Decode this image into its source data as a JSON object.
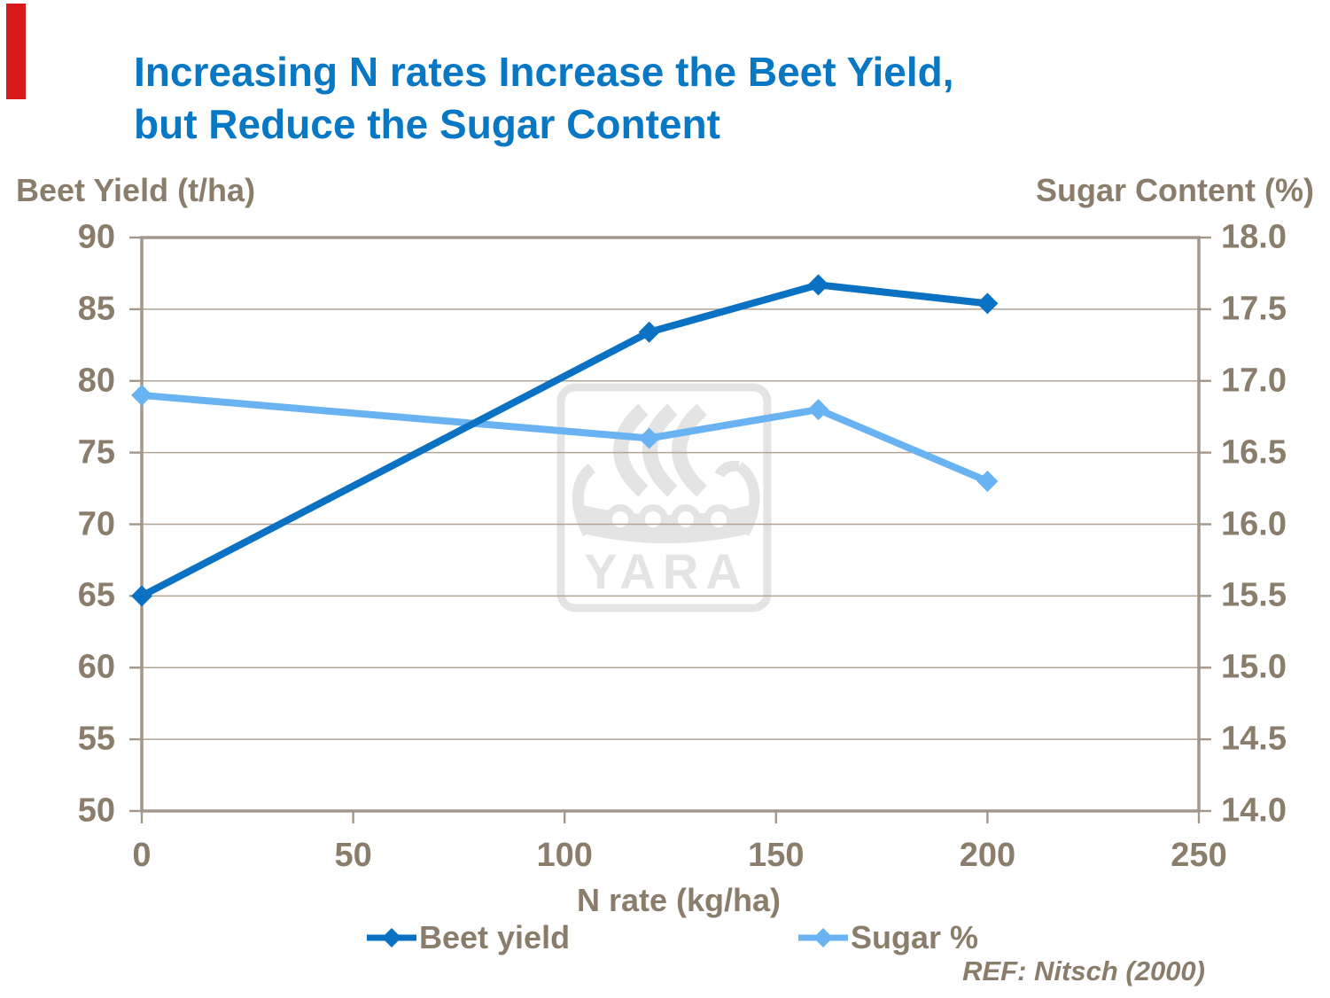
{
  "slide": {
    "title_line1": "Increasing N rates Increase the Beet Yield,",
    "title_line2": "but Reduce the Sugar Content",
    "title_color": "#0877C4",
    "text_color": "#8B7D6B",
    "accent_color": "#D7191C",
    "frame_color": "#A3968A",
    "gridline_color": "#B0A494",
    "watermark_color": "#E4E4E4"
  },
  "chart_data": {
    "type": "line",
    "title": "Increasing N rates Increase the Beet Yield, but Reduce the Sugar Content",
    "xlabel": "N rate (kg/ha)",
    "xlim": [
      0,
      250
    ],
    "x_ticks": [
      0,
      50,
      100,
      150,
      200,
      250
    ],
    "grid": true,
    "legend_position": "bottom",
    "axes": {
      "left": {
        "label": "Beet Yield (t/ha)",
        "lim": [
          50,
          90
        ],
        "ticks": [
          90,
          85,
          80,
          75,
          70,
          65,
          60,
          55,
          50
        ]
      },
      "right": {
        "label": "Sugar Content (%)",
        "lim": [
          14.0,
          18.0
        ],
        "ticks": [
          "18.0",
          "17.5",
          "17.0",
          "16.5",
          "16.0",
          "15.5",
          "15.0",
          "14.5",
          "14.0"
        ]
      }
    },
    "x": [
      0,
      120,
      160,
      200
    ],
    "series": [
      {
        "name": "Beet yield",
        "axis": "left",
        "color": "#0A71C3",
        "values": [
          65,
          83.4,
          86.7,
          85.4
        ]
      },
      {
        "name": "Sugar %",
        "axis": "right",
        "color": "#69B3F3",
        "values": [
          16.9,
          16.6,
          16.8,
          16.3
        ]
      }
    ],
    "watermark": "YARA",
    "source": "REF: Nitsch (2000)"
  }
}
